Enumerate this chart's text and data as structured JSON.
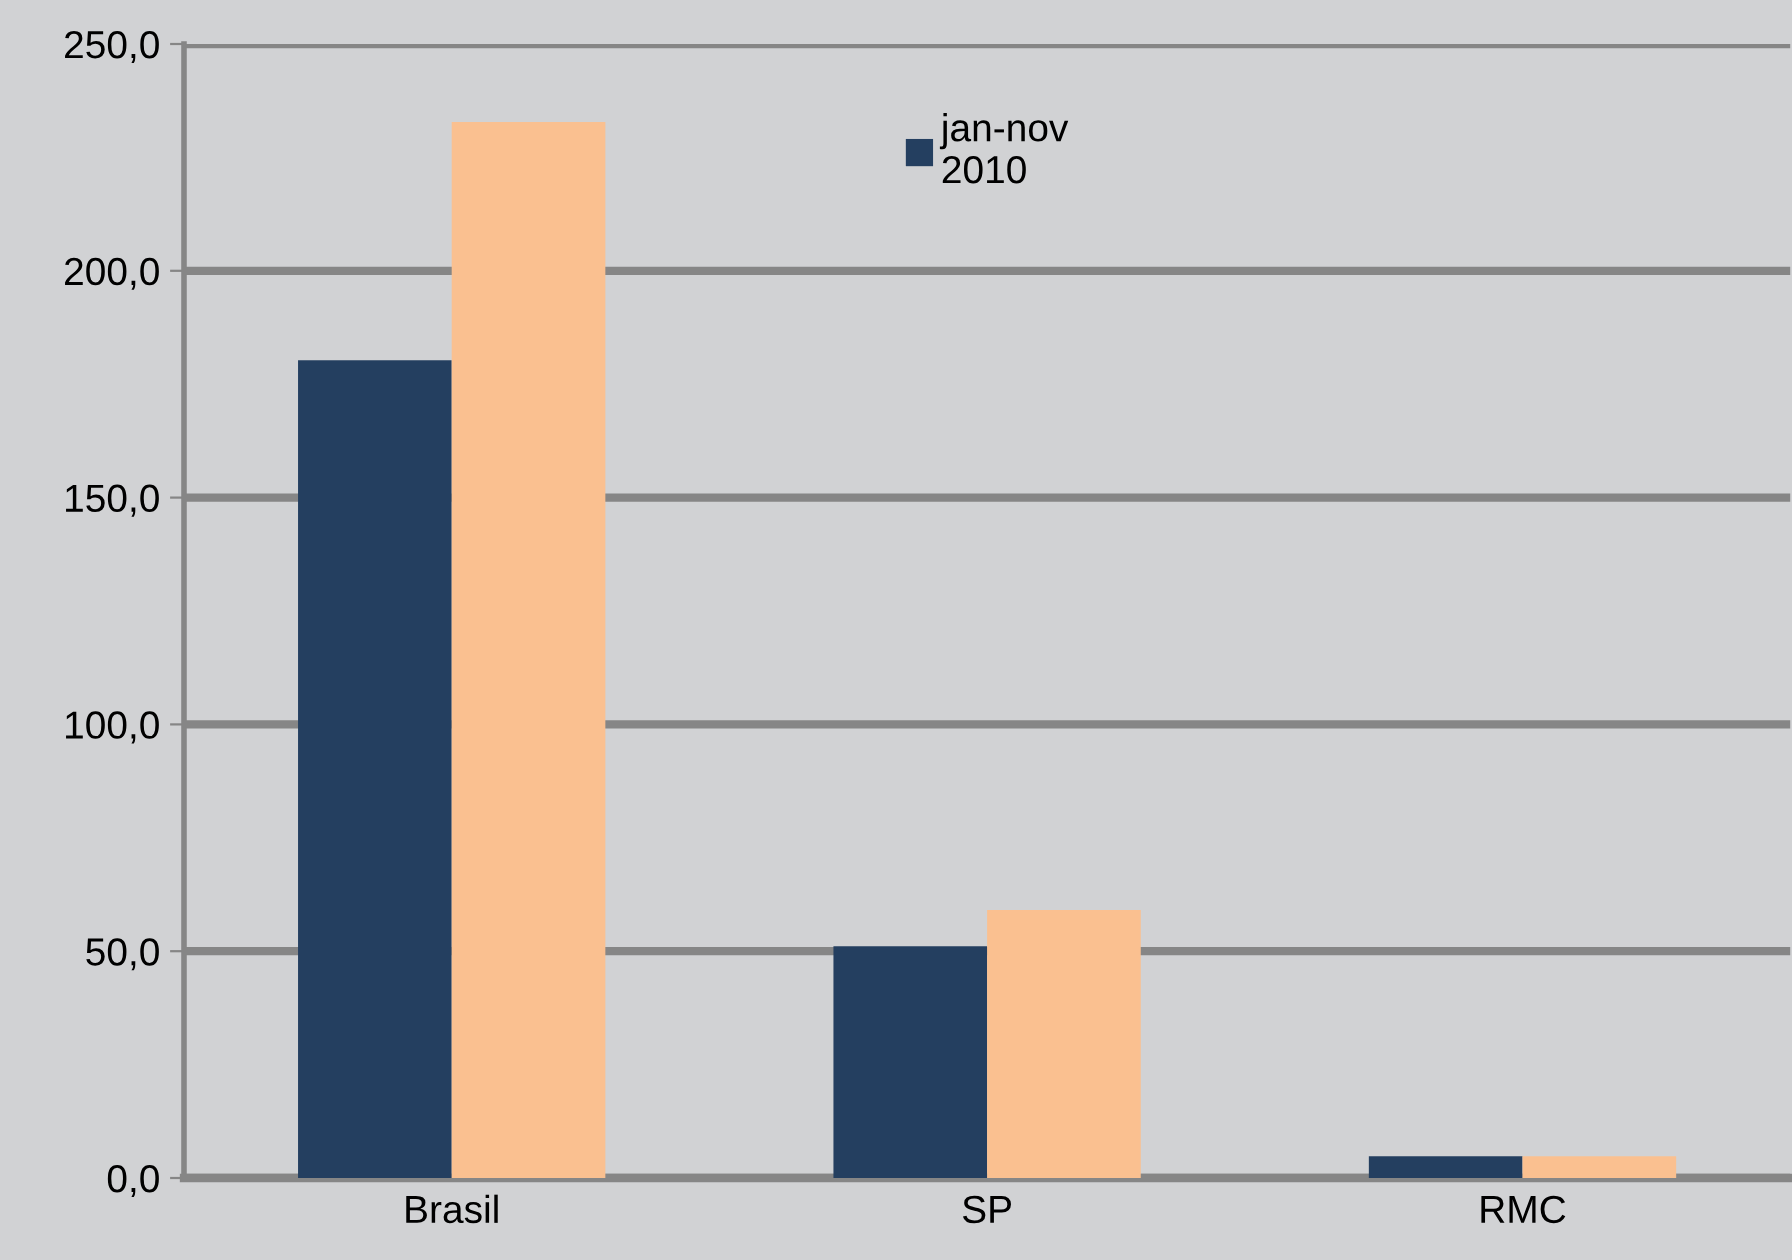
{
  "chart_data": {
    "type": "bar",
    "categories": [
      "Brasil",
      "SP",
      "RMC"
    ],
    "series": [
      {
        "name": "jan-nov\n2010",
        "color": "#243f60",
        "values": [
          180.3,
          51.1,
          4.8
        ]
      },
      {
        "color": "#fac090",
        "values": [
          232.8,
          59.1,
          4.8
        ]
      }
    ],
    "ylim": [
      0,
      250
    ],
    "yticks": [
      {
        "value": 0,
        "label": "0,0"
      },
      {
        "value": 50,
        "label": "50,0"
      },
      {
        "value": 100,
        "label": "100,0"
      },
      {
        "value": 150,
        "label": "150,0"
      },
      {
        "value": 200,
        "label": "200,0"
      },
      {
        "value": 250,
        "label": "250,0"
      }
    ],
    "grid": "y",
    "legend": "top"
  }
}
